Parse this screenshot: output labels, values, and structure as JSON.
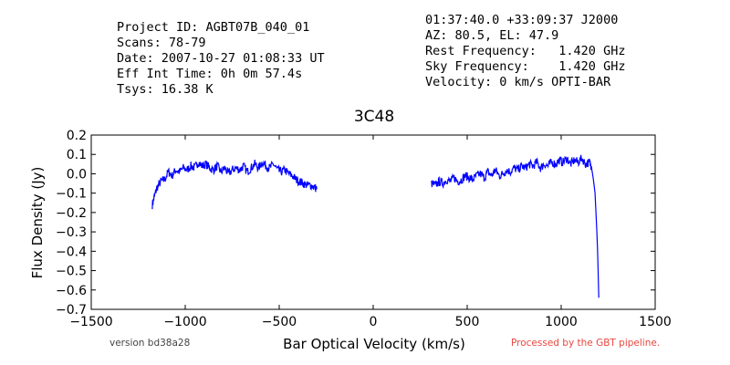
{
  "header_left": [
    "Project ID: AGBT07B_040_01",
    "Scans: 78-79",
    "Date: 2007-10-27 01:08:33 UT",
    "Eff Int Time: 0h 0m 57.4s",
    "Tsys: 16.38 K"
  ],
  "header_right": [
    "01:37:40.0 +33:09:37 J2000",
    "AZ: 80.5, EL: 47.9",
    "Rest Frequency:   1.420 GHz",
    "Sky Frequency:    1.420 GHz",
    "Velocity: 0 km/s OPTI-BAR"
  ],
  "footer": {
    "version": "version bd38a28",
    "processed": "Processed by the GBT pipeline."
  },
  "colors": {
    "series": "#0000ff",
    "processed_text": "#e8473f"
  },
  "chart_data": {
    "type": "line",
    "title": "3C48",
    "xlabel": "Bar Optical Velocity (km/s)",
    "ylabel": "Flux Density (Jy)",
    "xlim": [
      -1500,
      1500
    ],
    "ylim": [
      -0.7,
      0.2
    ],
    "xticks": [
      -1500,
      -1000,
      -500,
      0,
      500,
      1000,
      1500
    ],
    "xtick_labels": [
      "−1500",
      "−1000",
      "−500",
      "0",
      "500",
      "1000",
      "1500"
    ],
    "yticks": [
      0.2,
      0.1,
      0.0,
      -0.1,
      -0.2,
      -0.3,
      -0.4,
      -0.5,
      -0.6,
      -0.7
    ],
    "ytick_labels": [
      "0.2",
      "0.1",
      "0.0",
      "−0.1",
      "−0.2",
      "−0.3",
      "−0.4",
      "−0.5",
      "−0.6",
      "−0.7"
    ],
    "grid": false,
    "legend": "none",
    "series": [
      {
        "segment": "left",
        "x": [
          -1175,
          -1165,
          -1150,
          -1130,
          -1110,
          -1090,
          -1070,
          -1050,
          -1030,
          -1010,
          -990,
          -970,
          -950,
          -930,
          -910,
          -890,
          -870,
          -850,
          -830,
          -810,
          -790,
          -770,
          -750,
          -730,
          -710,
          -690,
          -670,
          -650,
          -630,
          -610,
          -590,
          -570,
          -550,
          -530,
          -510,
          -490,
          -470,
          -450,
          -430,
          -410,
          -390,
          -370,
          -350,
          -330,
          -310,
          -300
        ],
        "y": [
          -0.16,
          -0.12,
          -0.07,
          -0.04,
          -0.03,
          0.01,
          -0.01,
          0.02,
          0.01,
          0.03,
          0.02,
          0.04,
          0.03,
          0.06,
          0.04,
          0.05,
          0.03,
          0.02,
          0.04,
          0.01,
          0.03,
          0.0,
          0.02,
          0.03,
          0.02,
          0.04,
          0.01,
          0.03,
          0.05,
          0.03,
          0.06,
          0.04,
          0.03,
          0.05,
          0.02,
          0.01,
          0.02,
          0.0,
          -0.01,
          -0.03,
          -0.04,
          -0.05,
          -0.06,
          -0.06,
          -0.07,
          -0.08
        ]
      },
      {
        "segment": "right",
        "x": [
          310,
          330,
          350,
          370,
          390,
          410,
          430,
          450,
          470,
          490,
          510,
          530,
          550,
          570,
          590,
          610,
          630,
          650,
          670,
          690,
          710,
          730,
          750,
          770,
          790,
          810,
          830,
          850,
          870,
          890,
          910,
          930,
          950,
          970,
          990,
          1010,
          1030,
          1050,
          1070,
          1090,
          1110,
          1130,
          1150,
          1160,
          1170,
          1180,
          1185,
          1190,
          1195,
          1200
        ],
        "y": [
          -0.05,
          -0.06,
          -0.04,
          -0.05,
          -0.03,
          -0.04,
          -0.02,
          -0.04,
          -0.03,
          -0.01,
          -0.02,
          -0.03,
          -0.01,
          0.0,
          -0.02,
          0.01,
          -0.01,
          0.02,
          -0.01,
          0.0,
          0.02,
          0.01,
          0.03,
          0.02,
          0.04,
          0.03,
          0.05,
          0.04,
          0.06,
          0.03,
          0.05,
          0.04,
          0.06,
          0.05,
          0.07,
          0.06,
          0.08,
          0.05,
          0.07,
          0.06,
          0.08,
          0.05,
          0.06,
          0.04,
          -0.02,
          -0.1,
          -0.2,
          -0.3,
          -0.45,
          -0.64
        ]
      }
    ]
  }
}
